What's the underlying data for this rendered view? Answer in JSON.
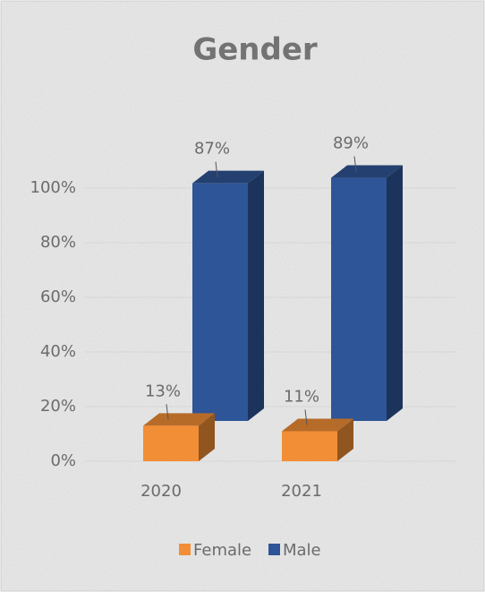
{
  "chart_data": {
    "type": "bar3d",
    "title": "Gender",
    "categories": [
      "2020",
      "2021"
    ],
    "series": [
      {
        "name": "Female",
        "color": "#f28e36",
        "values": [
          13,
          11
        ],
        "value_labels": [
          "13%",
          "11%"
        ]
      },
      {
        "name": "Male",
        "color": "#2e5597",
        "values": [
          87,
          89
        ],
        "value_labels": [
          "87%",
          "89%"
        ]
      }
    ],
    "ylim": [
      0,
      100
    ],
    "yticks": [
      {
        "value": 0,
        "label": "0%"
      },
      {
        "value": 20,
        "label": "20%"
      },
      {
        "value": 40,
        "label": "40%"
      },
      {
        "value": 60,
        "label": "60%"
      },
      {
        "value": 80,
        "label": "80%"
      },
      {
        "value": 100,
        "label": "100%"
      }
    ],
    "grid": true,
    "legend": "bottom"
  }
}
